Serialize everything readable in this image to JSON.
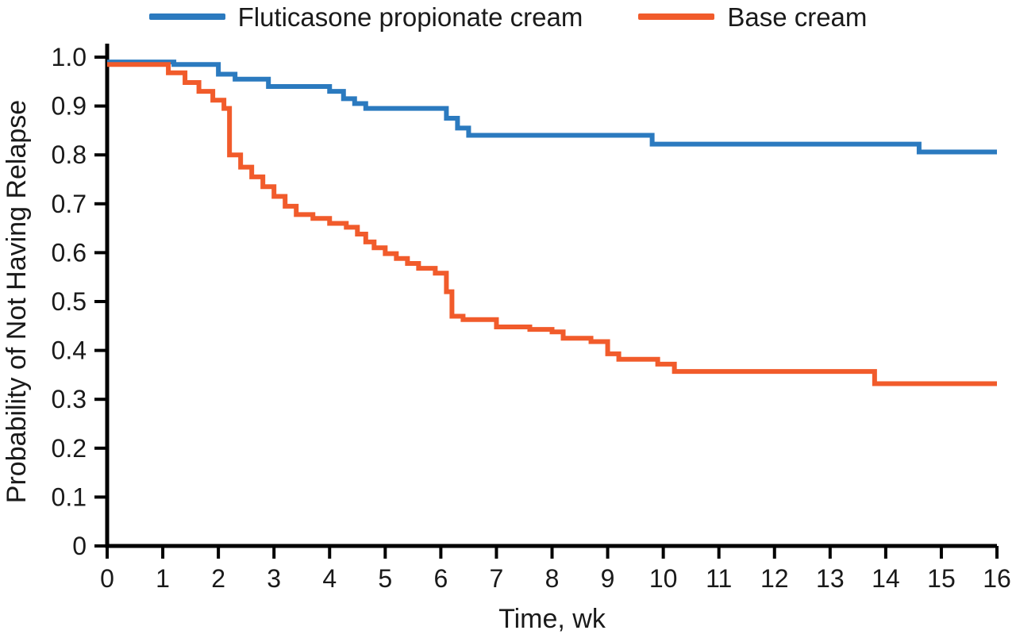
{
  "legend": {
    "items": [
      {
        "id": "fluticasone",
        "label": "Fluticasone propionate cream",
        "color": "#2b7abf"
      },
      {
        "id": "base-cream",
        "label": "Base cream",
        "color": "#f15b2b"
      }
    ]
  },
  "axes": {
    "color": "#000000",
    "text_color": "#1a1a1a"
  },
  "chart_data": {
    "type": "line",
    "subtype": "kaplan-meier-step",
    "title": "",
    "xlabel": "Time, wk",
    "ylabel": "Probability of Not Having Relapse",
    "xlim": [
      0,
      16
    ],
    "ylim": [
      0,
      1.0
    ],
    "grid": false,
    "legend_position": "top",
    "x_ticks": [
      0,
      1,
      2,
      3,
      4,
      5,
      6,
      7,
      8,
      9,
      10,
      11,
      12,
      13,
      14,
      15,
      16
    ],
    "x_tick_labels": [
      "0",
      "1",
      "2",
      "3",
      "4",
      "5",
      "6",
      "7",
      "8",
      "9",
      "10",
      "11",
      "12",
      "13",
      "14",
      "15",
      "16"
    ],
    "y_ticks": [
      0,
      0.1,
      0.2,
      0.3,
      0.4,
      0.5,
      0.6,
      0.7,
      0.8,
      0.9,
      1.0
    ],
    "y_tick_labels": [
      "0",
      "0.1",
      "0.2",
      "0.3",
      "0.4",
      "0.5",
      "0.6",
      "0.7",
      "0.8",
      "0.9",
      "1.0"
    ],
    "series": [
      {
        "id": "fluticasone",
        "name": "Fluticasone propionate cream",
        "color": "#2b7abf",
        "points": [
          [
            0,
            0.99
          ],
          [
            1.2,
            0.985
          ],
          [
            2.0,
            0.965
          ],
          [
            2.3,
            0.955
          ],
          [
            2.9,
            0.94
          ],
          [
            4.0,
            0.93
          ],
          [
            4.25,
            0.915
          ],
          [
            4.45,
            0.905
          ],
          [
            4.65,
            0.895
          ],
          [
            6.1,
            0.875
          ],
          [
            6.3,
            0.855
          ],
          [
            6.5,
            0.84
          ],
          [
            9.8,
            0.822
          ],
          [
            14.6,
            0.806
          ],
          [
            16,
            0.806
          ]
        ]
      },
      {
        "id": "base-cream",
        "name": "Base cream",
        "color": "#f15b2b",
        "points": [
          [
            0,
            0.985
          ],
          [
            1.1,
            0.968
          ],
          [
            1.4,
            0.948
          ],
          [
            1.65,
            0.93
          ],
          [
            1.9,
            0.912
          ],
          [
            2.1,
            0.895
          ],
          [
            2.2,
            0.8
          ],
          [
            2.4,
            0.775
          ],
          [
            2.6,
            0.755
          ],
          [
            2.8,
            0.735
          ],
          [
            3.0,
            0.715
          ],
          [
            3.2,
            0.695
          ],
          [
            3.4,
            0.678
          ],
          [
            3.7,
            0.67
          ],
          [
            4.0,
            0.66
          ],
          [
            4.3,
            0.652
          ],
          [
            4.5,
            0.638
          ],
          [
            4.65,
            0.622
          ],
          [
            4.8,
            0.61
          ],
          [
            5.0,
            0.598
          ],
          [
            5.2,
            0.588
          ],
          [
            5.4,
            0.578
          ],
          [
            5.6,
            0.568
          ],
          [
            5.9,
            0.558
          ],
          [
            6.1,
            0.52
          ],
          [
            6.2,
            0.47
          ],
          [
            6.4,
            0.463
          ],
          [
            7.0,
            0.448
          ],
          [
            7.6,
            0.443
          ],
          [
            8.0,
            0.438
          ],
          [
            8.2,
            0.425
          ],
          [
            8.7,
            0.418
          ],
          [
            9.0,
            0.393
          ],
          [
            9.2,
            0.382
          ],
          [
            9.9,
            0.372
          ],
          [
            10.2,
            0.357
          ],
          [
            13.8,
            0.332
          ],
          [
            16,
            0.332
          ]
        ]
      }
    ]
  }
}
